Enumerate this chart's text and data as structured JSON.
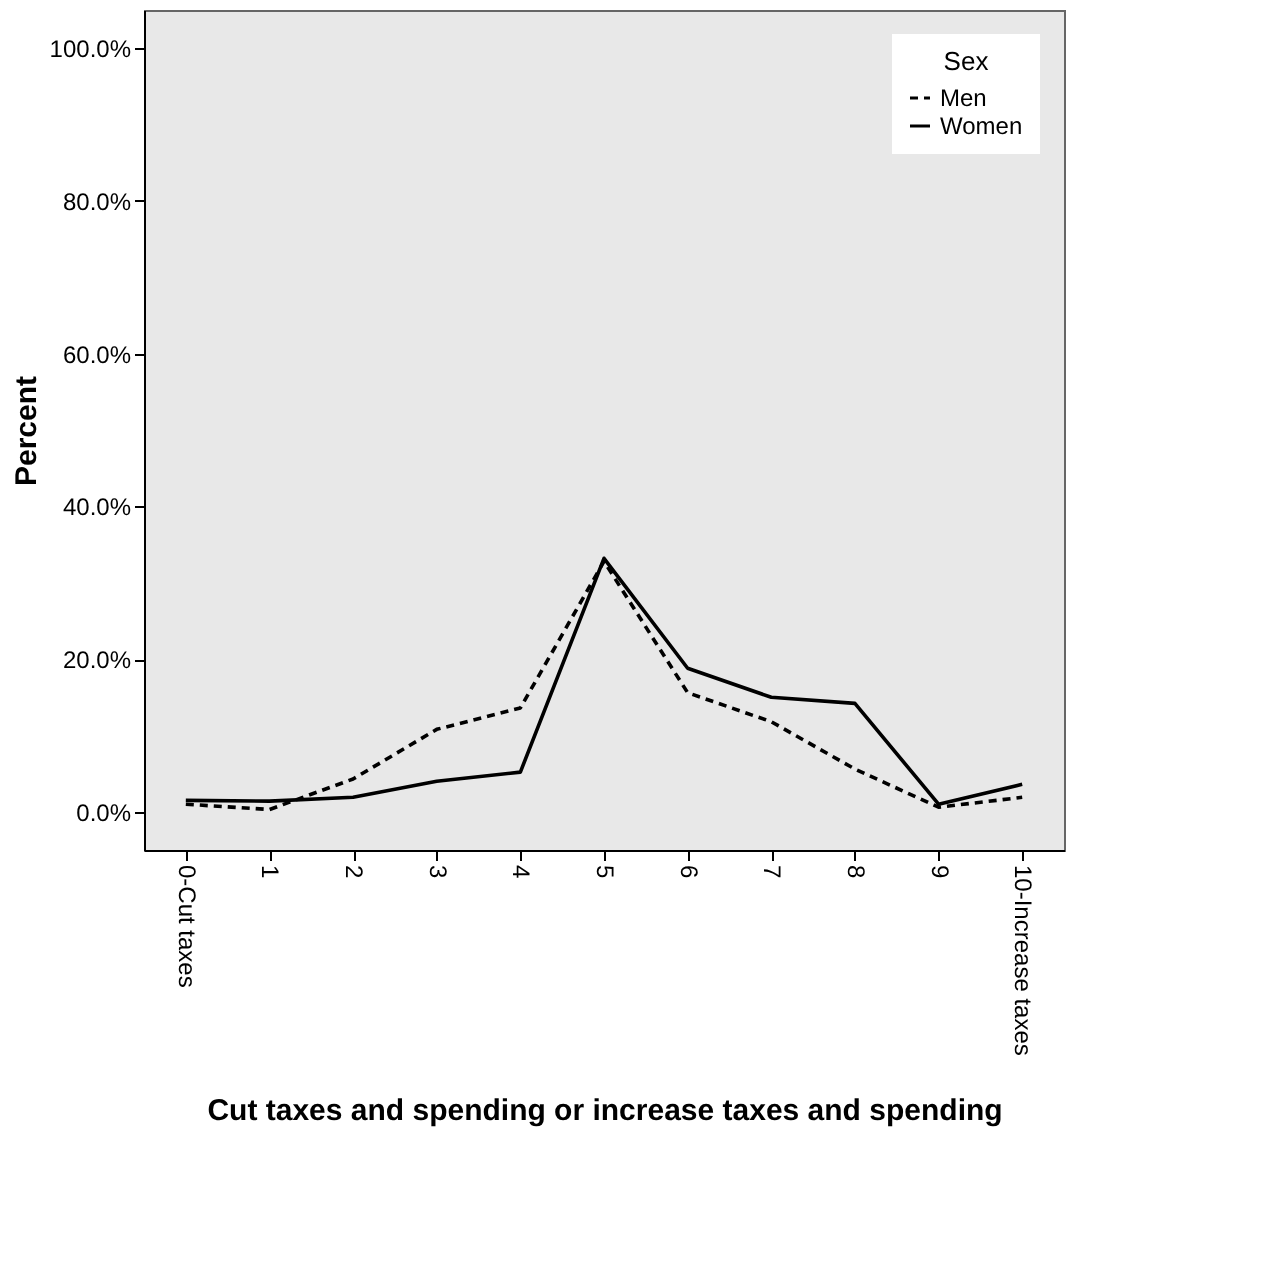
{
  "chart_data": {
    "type": "line",
    "xlabel": "Cut taxes and spending or increase taxes and spending",
    "ylabel": "Percent",
    "legend_title": "Sex",
    "categories": [
      "0-Cut taxes",
      "1",
      "2",
      "3",
      "4",
      "5",
      "6",
      "7",
      "8",
      "9",
      "10-Increase taxes"
    ],
    "series": [
      {
        "name": "Men",
        "color": "#000000",
        "line_style": "dashed",
        "values": [
          1.0,
          0.3,
          4.3,
          10.8,
          13.6,
          32.8,
          15.6,
          11.8,
          5.6,
          0.6,
          1.9
        ]
      },
      {
        "name": "Women",
        "color": "#000000",
        "line_style": "solid",
        "values": [
          1.5,
          1.4,
          1.9,
          4.0,
          5.2,
          33.2,
          18.8,
          15.0,
          14.2,
          1.0,
          3.6
        ]
      }
    ],
    "ylim": [
      -5,
      105
    ],
    "yticks": [
      {
        "value": 0,
        "label": "0.0%"
      },
      {
        "value": 20,
        "label": "20.0%"
      },
      {
        "value": 40,
        "label": "40.0%"
      },
      {
        "value": 60,
        "label": "60.0%"
      },
      {
        "value": 80,
        "label": "80.0%"
      },
      {
        "value": 100,
        "label": "100.0%"
      }
    ],
    "grid": false,
    "legend": "top right",
    "marker": "none"
  }
}
